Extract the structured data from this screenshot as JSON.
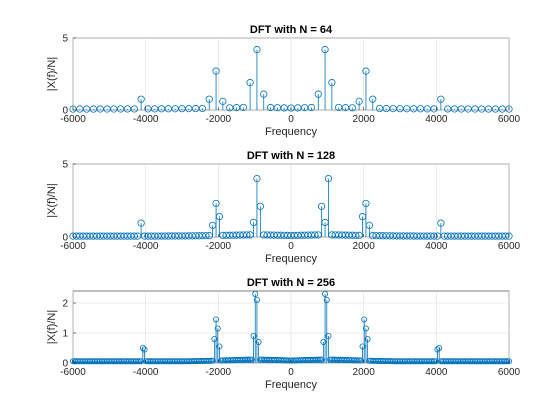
{
  "colors": {
    "series": "#0072BD",
    "axes": "#262626",
    "grid": "#dcdcdc",
    "background": "#ffffff"
  },
  "chart_data": [
    {
      "type": "stem",
      "title": "DFT with N = 64",
      "xlabel": "Frequency",
      "ylabel": "|X(f)/N|",
      "xlim": [
        -6000,
        6000
      ],
      "ylim": [
        0,
        5
      ],
      "xticks": [
        -6000,
        -4000,
        -2000,
        0,
        2000,
        4000,
        6000
      ],
      "yticks": [
        0,
        5
      ],
      "grid": true,
      "N": 64,
      "x_spacing": 187.5,
      "peaks": [
        {
          "x": -4125,
          "y": 0.75
        },
        {
          "x": -2250,
          "y": 0.75
        },
        {
          "x": -2062.5,
          "y": 2.7
        },
        {
          "x": -1875,
          "y": 0.6
        },
        {
          "x": -1125,
          "y": 1.9
        },
        {
          "x": -937.5,
          "y": 4.2
        },
        {
          "x": -750,
          "y": 1.1
        },
        {
          "x": 750,
          "y": 1.1
        },
        {
          "x": 937.5,
          "y": 4.2
        },
        {
          "x": 1125,
          "y": 1.9
        },
        {
          "x": 1875,
          "y": 0.6
        },
        {
          "x": 2062.5,
          "y": 2.7
        },
        {
          "x": 2250,
          "y": 0.75
        },
        {
          "x": 4125,
          "y": 0.75
        }
      ]
    },
    {
      "type": "stem",
      "title": "DFT with N = 128",
      "xlabel": "Frequency",
      "ylabel": "|X(f)/N|",
      "xlim": [
        -6000,
        6000
      ],
      "ylim": [
        0,
        5
      ],
      "xticks": [
        -6000,
        -4000,
        -2000,
        0,
        2000,
        4000,
        6000
      ],
      "yticks": [
        0,
        5
      ],
      "grid": true,
      "N": 128,
      "x_spacing": 93.75,
      "peaks": [
        {
          "x": -4125,
          "y": 0.95
        },
        {
          "x": -2062.5,
          "y": 2.3
        },
        {
          "x": -1968.75,
          "y": 1.4
        },
        {
          "x": -2156.25,
          "y": 0.8
        },
        {
          "x": -1031.25,
          "y": 1.0
        },
        {
          "x": -937.5,
          "y": 4.0
        },
        {
          "x": -843.75,
          "y": 2.1
        },
        {
          "x": 843.75,
          "y": 2.1
        },
        {
          "x": 937.5,
          "y": 1.0
        },
        {
          "x": 1031.25,
          "y": 4.0
        },
        {
          "x": 1968.75,
          "y": 1.4
        },
        {
          "x": 2062.5,
          "y": 2.3
        },
        {
          "x": 2156.25,
          "y": 0.8
        },
        {
          "x": 4125,
          "y": 0.95
        }
      ]
    },
    {
      "type": "stem",
      "title": "DFT with N = 256",
      "xlabel": "Frequency",
      "ylabel": "|X(f)/N|",
      "xlim": [
        -6000,
        6000
      ],
      "ylim": [
        0,
        2.4
      ],
      "xticks": [
        -6000,
        -4000,
        -2000,
        0,
        2000,
        4000,
        6000
      ],
      "yticks": [
        0,
        1,
        2
      ],
      "grid": true,
      "N": 256,
      "x_spacing": 46.875,
      "peaks": [
        {
          "x": -4078.125,
          "y": 0.5
        },
        {
          "x": -4031.25,
          "y": 0.45
        },
        {
          "x": -2062.5,
          "y": 1.45
        },
        {
          "x": -2015.625,
          "y": 1.15
        },
        {
          "x": -2109.375,
          "y": 0.8
        },
        {
          "x": -1968.75,
          "y": 0.55
        },
        {
          "x": -1031.25,
          "y": 0.9
        },
        {
          "x": -984.375,
          "y": 2.3
        },
        {
          "x": -937.5,
          "y": 2.1
        },
        {
          "x": -890.625,
          "y": 0.7
        },
        {
          "x": 890.625,
          "y": 0.7
        },
        {
          "x": 937.5,
          "y": 2.3
        },
        {
          "x": 984.375,
          "y": 2.1
        },
        {
          "x": 1031.25,
          "y": 0.9
        },
        {
          "x": 1968.75,
          "y": 0.55
        },
        {
          "x": 2015.625,
          "y": 1.45
        },
        {
          "x": 2062.5,
          "y": 1.15
        },
        {
          "x": 2109.375,
          "y": 0.8
        },
        {
          "x": 4031.25,
          "y": 0.45
        },
        {
          "x": 4078.125,
          "y": 0.5
        }
      ]
    }
  ]
}
